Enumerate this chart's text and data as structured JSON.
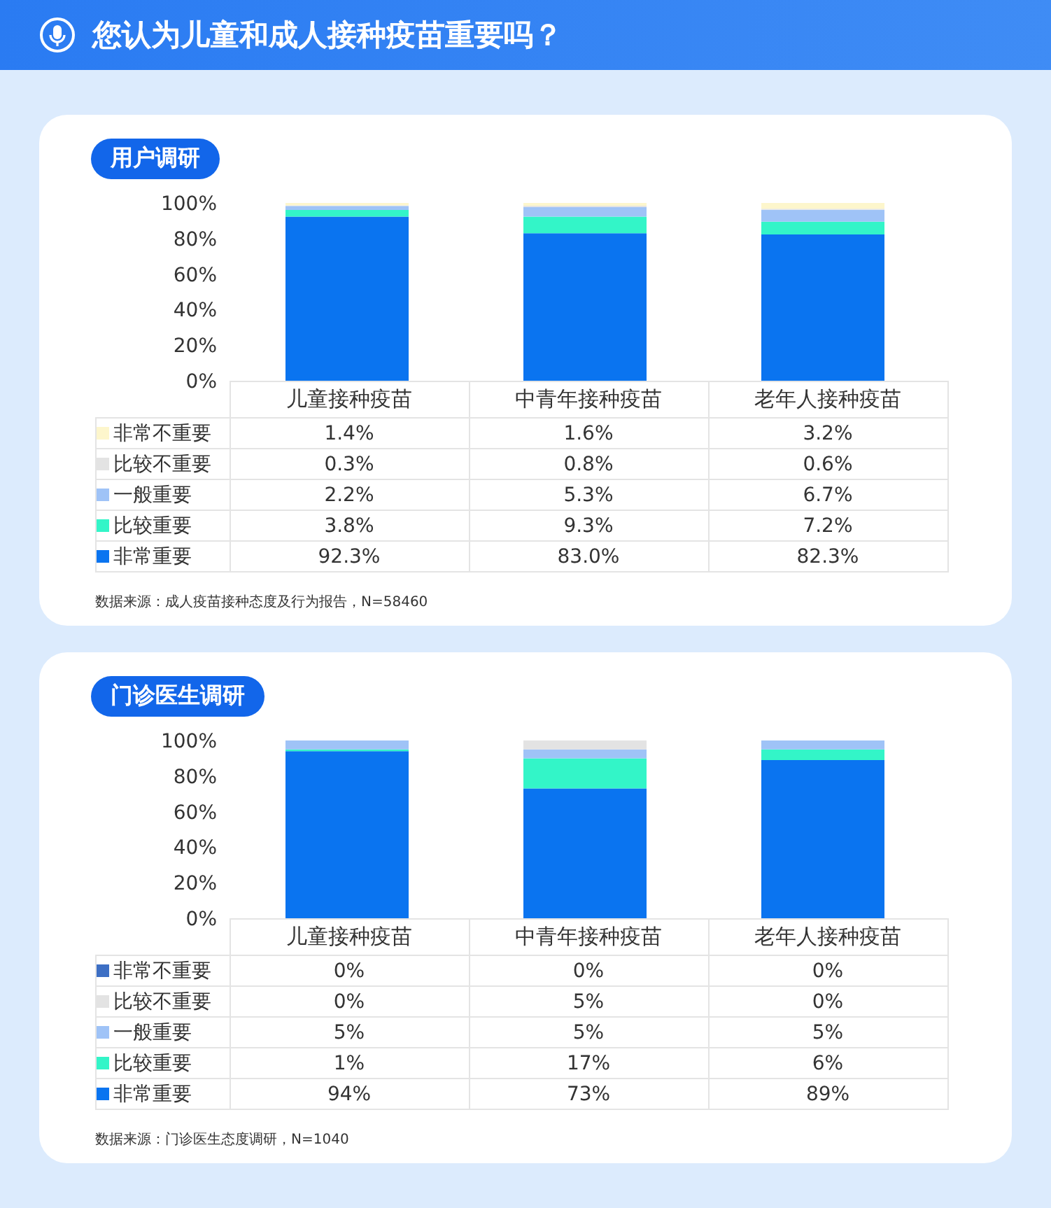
{
  "chart_data": [
    {
      "type": "bar",
      "title": "您认为儿童和成人接种疫苗重要吗？",
      "subtitle": "用户调研",
      "stacked": true,
      "legend": "bottom left",
      "ylim": [
        0,
        100
      ],
      "yticks": [
        {
          "value": 0,
          "label": "0%"
        },
        {
          "value": 20,
          "label": "20%"
        },
        {
          "value": 40,
          "label": "40%"
        },
        {
          "value": 60,
          "label": "60%"
        },
        {
          "value": 80,
          "label": "80%"
        },
        {
          "value": 100,
          "label": "100%"
        }
      ],
      "categories": [
        "儿童接种疫苗",
        "中青年接种疫苗",
        "老年人接种疫苗"
      ],
      "series": [
        {
          "name": "非常重要",
          "color": "#0a74f0",
          "values": [
            92.3,
            83.0,
            82.3
          ],
          "value_labels": [
            "92.3%",
            "83.0%",
            "82.3%"
          ]
        },
        {
          "name": "比较重要",
          "color": "#33f5c8",
          "values": [
            3.8,
            9.3,
            7.2
          ],
          "value_labels": [
            "3.8%",
            "9.3%",
            "7.2%"
          ]
        },
        {
          "name": "一般重要",
          "color": "#9fc3f7",
          "values": [
            2.2,
            5.3,
            6.7
          ],
          "value_labels": [
            "2.2%",
            "5.3%",
            "6.7%"
          ]
        },
        {
          "name": "比较不重要",
          "color": "#e3e3e3",
          "values": [
            0.3,
            0.8,
            0.6
          ],
          "value_labels": [
            "0.3%",
            "0.8%",
            "0.6%"
          ]
        },
        {
          "name": "非常不重要",
          "color": "#fdf6cc",
          "values": [
            1.4,
            1.6,
            3.2
          ],
          "value_labels": [
            "1.4%",
            "1.6%",
            "3.2%"
          ]
        }
      ],
      "annotations": [
        "数据来源：成人疫苗接种态度及行为报告，N=58460"
      ]
    },
    {
      "type": "bar",
      "subtitle": "门诊医生调研",
      "stacked": true,
      "legend": "bottom left",
      "ylim": [
        0,
        100
      ],
      "yticks": [
        {
          "value": 0,
          "label": "0%"
        },
        {
          "value": 20,
          "label": "20%"
        },
        {
          "value": 40,
          "label": "40%"
        },
        {
          "value": 60,
          "label": "60%"
        },
        {
          "value": 80,
          "label": "80%"
        },
        {
          "value": 100,
          "label": "100%"
        }
      ],
      "categories": [
        "儿童接种疫苗",
        "中青年接种疫苗",
        "老年人接种疫苗"
      ],
      "series": [
        {
          "name": "非常重要",
          "color": "#0a74f0",
          "values": [
            94,
            73,
            89
          ],
          "value_labels": [
            "94%",
            "73%",
            "89%"
          ]
        },
        {
          "name": "比较重要",
          "color": "#33f5c8",
          "values": [
            1,
            17,
            6
          ],
          "value_labels": [
            "1%",
            "17%",
            "6%"
          ]
        },
        {
          "name": "一般重要",
          "color": "#9fc3f7",
          "values": [
            5,
            5,
            5
          ],
          "value_labels": [
            "5%",
            "5%",
            "5%"
          ]
        },
        {
          "name": "比较不重要",
          "color": "#e3e3e3",
          "values": [
            0,
            5,
            0
          ],
          "value_labels": [
            "0%",
            "5%",
            "0%"
          ]
        },
        {
          "name": "非常不重要",
          "color": "#3d6fc4",
          "values": [
            0,
            0,
            0
          ],
          "value_labels": [
            "0%",
            "0%",
            "0%"
          ]
        }
      ],
      "annotations": [
        "数据来源：门诊医生态度调研，N=1040"
      ]
    }
  ]
}
